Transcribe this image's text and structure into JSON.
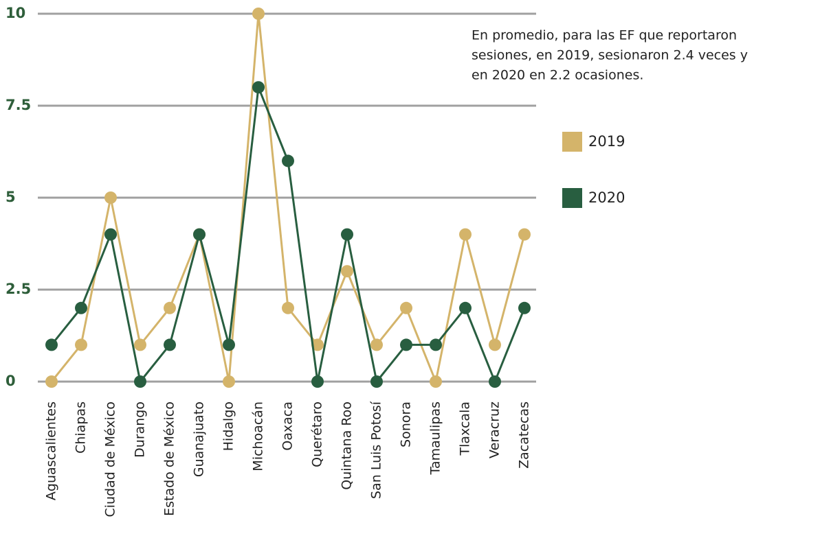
{
  "chart_data": {
    "type": "line",
    "annotation": [
      "En promedio, para las EF que reportaron",
      "sesiones, en 2019, sesionaron 2.4 veces y",
      "en 2020 en 2.2 ocasiones."
    ],
    "categories": [
      "Aguascalientes",
      "Chiapas",
      "Ciudad de México",
      "Durango",
      "Estado de México",
      "Guanajuato",
      "Hidalgo",
      "Michoacán",
      "Oaxaca",
      "Querétaro",
      "Quintana Roo",
      "San Luis Potosí",
      "Sonora",
      "Tamaulipas",
      "Tlaxcala",
      "Veracruz",
      "Zacatecas"
    ],
    "series": [
      {
        "name": "2019",
        "color": "#d4b46a",
        "values": [
          0,
          1,
          5,
          1,
          2,
          4,
          0,
          10,
          2,
          1,
          3,
          1,
          2,
          0,
          4,
          1,
          4
        ]
      },
      {
        "name": "2020",
        "color": "#285e40",
        "values": [
          1,
          2,
          4,
          0,
          1,
          4,
          1,
          8,
          6,
          0,
          4,
          0,
          1,
          1,
          2,
          0,
          2
        ]
      }
    ],
    "ylim": [
      0,
      10
    ],
    "yticks": [
      0,
      2.5,
      5,
      7.5,
      10
    ],
    "grid": true
  }
}
